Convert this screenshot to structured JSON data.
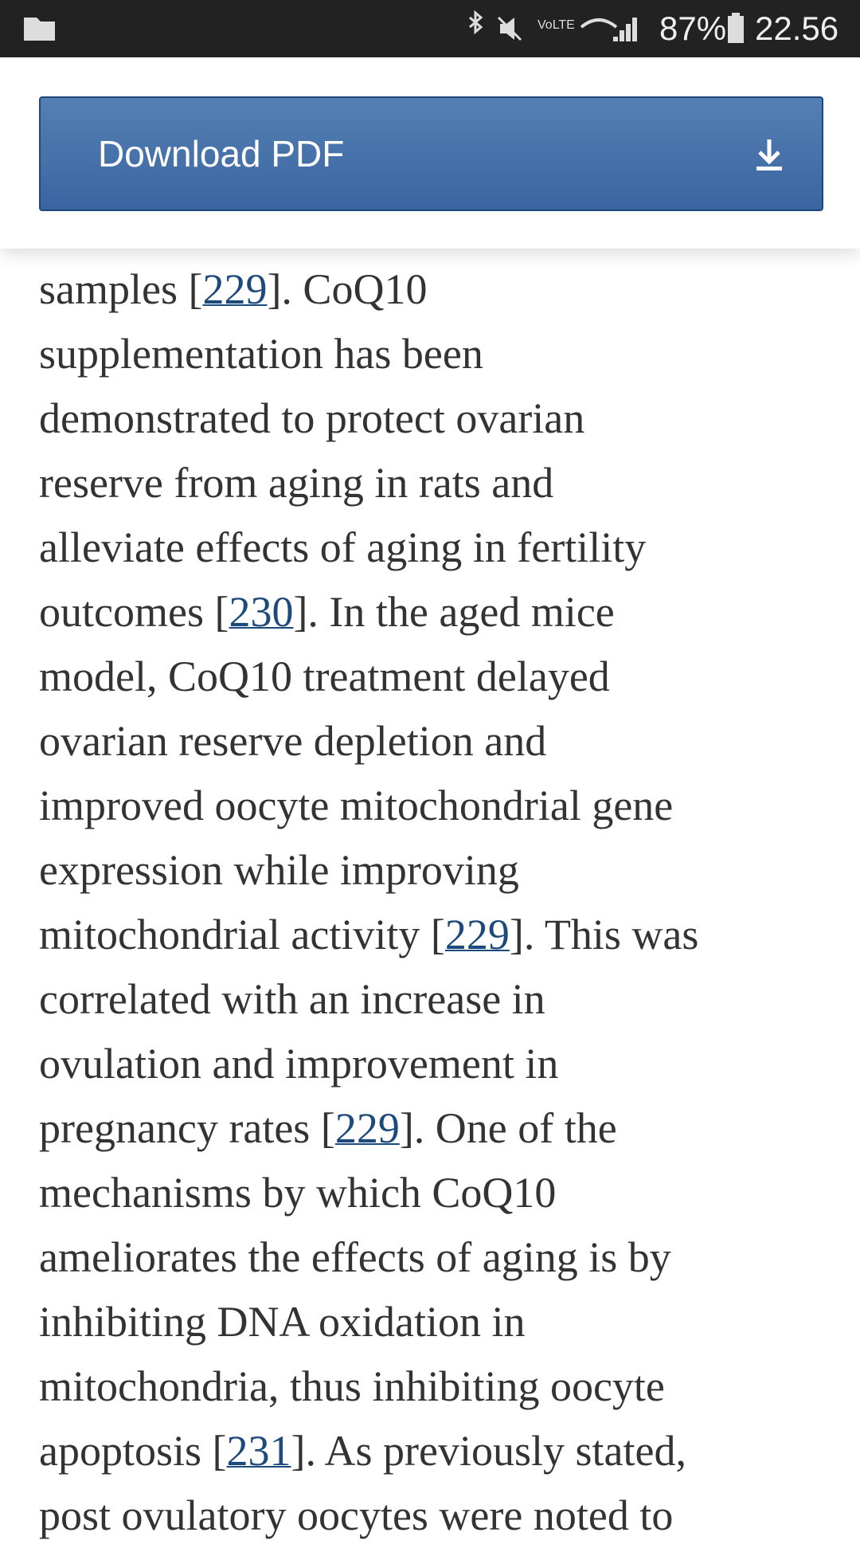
{
  "status_bar": {
    "battery": "87%",
    "time": "22.56"
  },
  "header": {
    "button_label": "Download PDF"
  },
  "article": {
    "lines": [
      [
        "samples [",
        {
          "ref": "229"
        },
        "]. CoQ10"
      ],
      [
        "supplementation has been"
      ],
      [
        "demonstrated to protect ovarian"
      ],
      [
        "reserve from aging in rats and"
      ],
      [
        "alleviate effects of aging in fertility"
      ],
      [
        "outcomes [",
        {
          "ref": "230"
        },
        "]. In the aged mice"
      ],
      [
        "model, CoQ10 treatment delayed"
      ],
      [
        "ovarian reserve depletion and"
      ],
      [
        "improved oocyte mitochondrial gene"
      ],
      [
        "expression while improving"
      ],
      [
        "mitochondrial activity [",
        {
          "ref": "229"
        },
        "]. This was"
      ],
      [
        "correlated with an increase in"
      ],
      [
        "ovulation and improvement in"
      ],
      [
        "pregnancy rates [",
        {
          "ref": "229"
        },
        "]. One of the"
      ],
      [
        "mechanisms by which CoQ10"
      ],
      [
        "ameliorates the effects of aging is by"
      ],
      [
        "inhibiting DNA oxidation in"
      ],
      [
        "mitochondria, thus inhibiting oocyte"
      ],
      [
        "apoptosis [",
        {
          "ref": "231"
        },
        "]. As previously stated,"
      ],
      [
        "post ovulatory oocytes were noted to"
      ]
    ]
  }
}
